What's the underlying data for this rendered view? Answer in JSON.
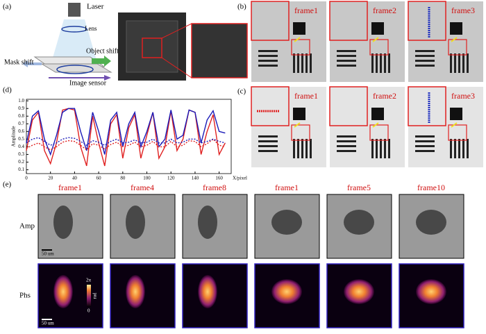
{
  "panel_labels": [
    "(a)",
    "(b)",
    "(c)",
    "(d)",
    "(e)"
  ],
  "setup": {
    "laser": "Laser",
    "lens": "Lens",
    "object_shift": "Object shift",
    "mask_shift": "Mask shift",
    "image_sensor": "Image sensor"
  },
  "panel_b": {
    "frames": [
      "frame1",
      "frame2",
      "frame3"
    ]
  },
  "panel_c": {
    "frames": [
      "frame1",
      "frame2",
      "frame3"
    ]
  },
  "panel_e": {
    "frames": [
      "frame1",
      "frame4",
      "frame8",
      "frame1",
      "frame5",
      "frame10"
    ],
    "rows": [
      "Amp",
      "Phs"
    ],
    "scale_bar": "50 um",
    "colorbar": {
      "max": "2π",
      "min": "0",
      "unit": "rad"
    }
  },
  "chart_data": {
    "type": "line",
    "xlabel": "X/pixel",
    "ylabel": "Amplitude",
    "x": [
      0,
      5,
      10,
      15,
      20,
      25,
      30,
      35,
      40,
      45,
      50,
      55,
      60,
      65,
      70,
      75,
      80,
      85,
      90,
      95,
      100,
      105,
      110,
      115,
      120,
      125,
      130,
      135,
      140,
      145,
      150,
      155,
      160,
      165
    ],
    "series": [
      {
        "color": "#e02020",
        "dashed": false,
        "values": [
          0.35,
          0.75,
          0.85,
          0.35,
          0.18,
          0.45,
          0.88,
          0.9,
          0.88,
          0.4,
          0.15,
          0.8,
          0.45,
          0.15,
          0.7,
          0.82,
          0.25,
          0.65,
          0.82,
          0.25,
          0.55,
          0.85,
          0.25,
          0.4,
          0.87,
          0.35,
          0.5,
          0.88,
          0.85,
          0.3,
          0.6,
          0.82,
          0.3,
          0.45
        ]
      },
      {
        "color": "#1a1ab8",
        "dashed": false,
        "values": [
          0.45,
          0.8,
          0.87,
          0.5,
          0.3,
          0.55,
          0.85,
          0.9,
          0.9,
          0.6,
          0.35,
          0.85,
          0.6,
          0.3,
          0.75,
          0.85,
          0.4,
          0.7,
          0.85,
          0.4,
          0.6,
          0.85,
          0.4,
          0.5,
          0.88,
          0.5,
          0.55,
          0.88,
          0.85,
          0.45,
          0.75,
          0.87,
          0.6,
          0.58
        ]
      },
      {
        "color": "#e02020",
        "dashed": true,
        "values": [
          0.38,
          0.42,
          0.45,
          0.4,
          0.36,
          0.4,
          0.46,
          0.48,
          0.47,
          0.42,
          0.36,
          0.44,
          0.42,
          0.37,
          0.43,
          0.46,
          0.4,
          0.42,
          0.46,
          0.4,
          0.42,
          0.47,
          0.4,
          0.4,
          0.47,
          0.4,
          0.42,
          0.48,
          0.47,
          0.4,
          0.44,
          0.5,
          0.42,
          0.4
        ]
      },
      {
        "color": "#1a1ab8",
        "dashed": true,
        "values": [
          0.45,
          0.5,
          0.52,
          0.47,
          0.42,
          0.45,
          0.5,
          0.52,
          0.51,
          0.47,
          0.42,
          0.48,
          0.46,
          0.42,
          0.47,
          0.5,
          0.45,
          0.46,
          0.49,
          0.45,
          0.46,
          0.5,
          0.45,
          0.45,
          0.5,
          0.45,
          0.46,
          0.5,
          0.5,
          0.45,
          0.47,
          0.5,
          0.47,
          0.45
        ]
      }
    ],
    "xlim": [
      0,
      170
    ],
    "ylim": [
      0.05,
      1.02
    ],
    "xticks": [
      0,
      20,
      40,
      60,
      80,
      100,
      120,
      140,
      160
    ],
    "yticks": [
      0.1,
      0.2,
      0.3,
      0.4,
      0.5,
      0.6,
      0.7,
      0.8,
      0.9,
      {
        "value": 1,
        "label": "1.0"
      }
    ]
  }
}
